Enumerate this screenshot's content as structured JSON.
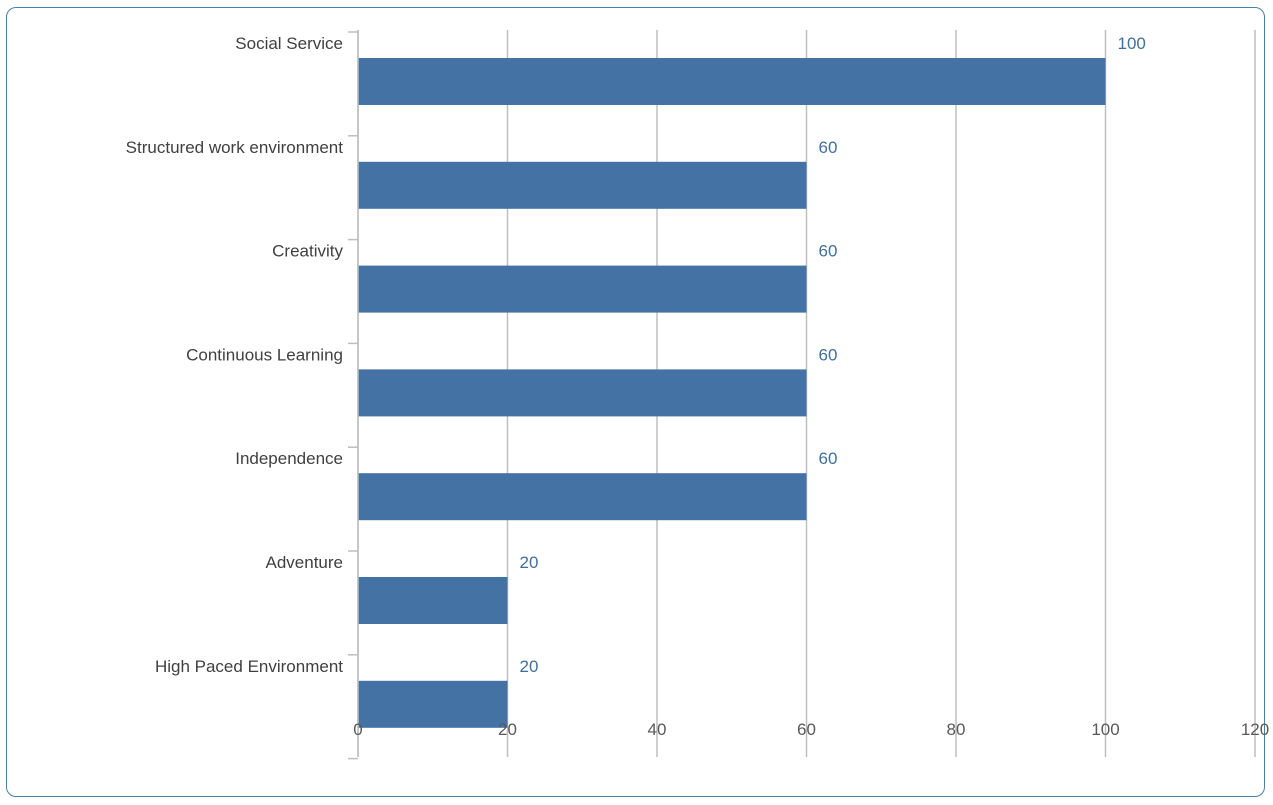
{
  "colors": {
    "bar": "#4472a4",
    "data_label": "#3f6fa0",
    "grid": "#bfbfbf",
    "frame": "#4a7fa6"
  },
  "chart_data": {
    "type": "bar",
    "orientation": "horizontal",
    "categories": [
      "Social Service",
      "Structured work environment",
      "Creativity",
      "Continuous Learning",
      "Independence",
      "Adventure",
      "High Paced Environment"
    ],
    "values": [
      100,
      60,
      60,
      60,
      60,
      20,
      20
    ],
    "xlim": [
      0,
      120
    ],
    "x_ticks": [
      0,
      20,
      40,
      60,
      80,
      100,
      120
    ],
    "data_labels": true,
    "grid": true,
    "legend": "none",
    "title": "",
    "xlabel": "",
    "ylabel": ""
  }
}
